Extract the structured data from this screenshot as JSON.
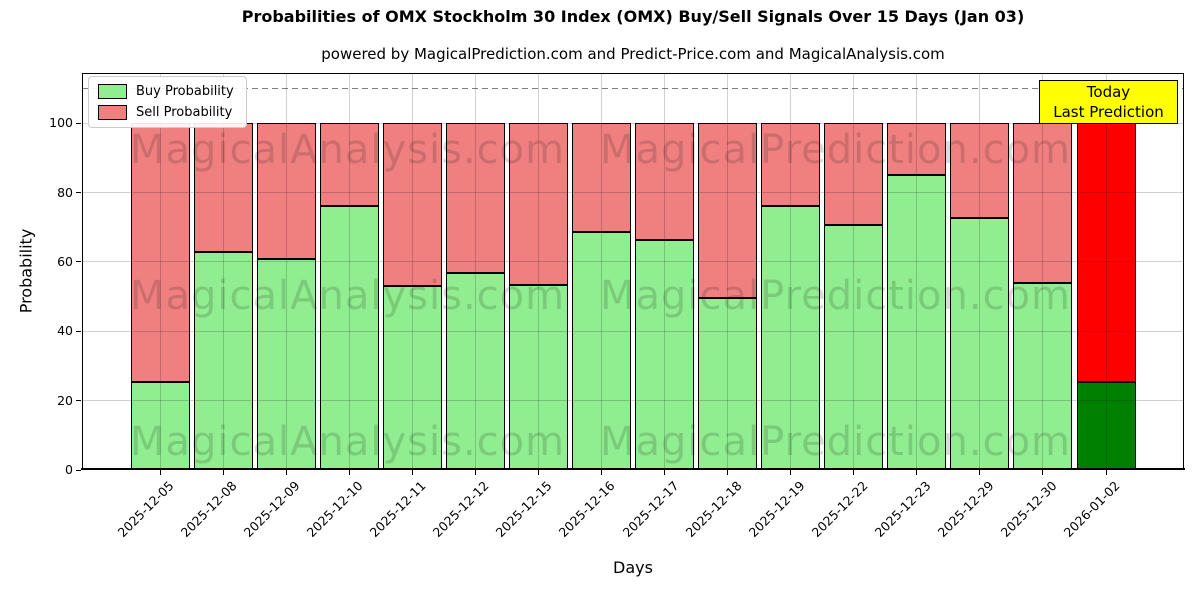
{
  "title": "Probabilities of OMX Stockholm 30 Index (OMX) Buy/Sell Signals Over 15 Days (Jan 03)",
  "subtitle": "powered by MagicalPrediction.com and Predict-Price.com and MagicalAnalysis.com",
  "legend": {
    "buy_label": "Buy Probability",
    "sell_label": "Sell Probability"
  },
  "annotation_box": {
    "line1": "Today",
    "line2": "Last Prediction",
    "bg_color": "#ffff00"
  },
  "watermarks": {
    "left": "MagicalAnalysis.com",
    "right": "MagicalPrediction.com"
  },
  "axes": {
    "x_label": "Days",
    "y_label": "Probability"
  },
  "colors": {
    "buy": "#90ee90",
    "sell": "#f08080",
    "buy_highlight": "#008000",
    "sell_highlight": "#ff0000",
    "grid": "#b0b0b0",
    "dashed_line": "#7f7f7f"
  },
  "chart_data": {
    "type": "bar",
    "stacked": true,
    "title": "Probabilities of OMX Stockholm 30 Index (OMX) Buy/Sell Signals Over 15 Days (Jan 03)",
    "xlabel": "Days",
    "ylabel": "Probability",
    "categories": [
      "2025-12-05",
      "2025-12-08",
      "2025-12-09",
      "2025-12-10",
      "2025-12-11",
      "2025-12-12",
      "2025-12-15",
      "2025-12-16",
      "2025-12-17",
      "2025-12-18",
      "2025-12-19",
      "2025-12-22",
      "2025-12-23",
      "2025-12-29",
      "2025-12-30",
      "2026-01-02"
    ],
    "series": [
      {
        "name": "Buy Probability",
        "color": "#90ee90",
        "highlight_color": "#008000",
        "values": [
          25,
          63,
          61,
          76.5,
          53,
          57,
          53.5,
          69,
          66.5,
          49.5,
          76.5,
          71,
          85.5,
          73,
          54,
          25
        ]
      },
      {
        "name": "Sell Probability",
        "color": "#f08080",
        "highlight_color": "#ff0000",
        "values": [
          75,
          37,
          39,
          23.5,
          47,
          43,
          46.5,
          31,
          33.5,
          50.5,
          23.5,
          29,
          14.5,
          27,
          46,
          75
        ]
      }
    ],
    "highlight_index": 15,
    "ylim": [
      0,
      114.5
    ],
    "yticks": [
      0,
      20,
      40,
      60,
      80,
      100
    ],
    "dashed_line_y": 110,
    "grid": true,
    "legend_position": "upper left"
  }
}
